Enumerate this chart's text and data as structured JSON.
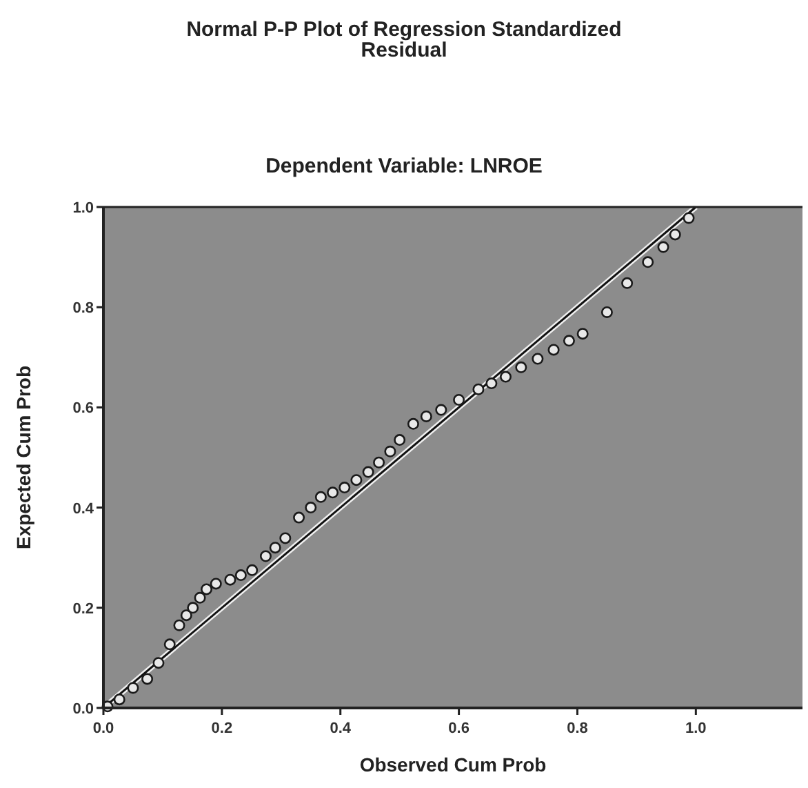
{
  "chart_data": {
    "type": "scatter",
    "title": "Normal P-P Plot of Regression Standardized Residual",
    "subtitle": "Dependent Variable: LNROE",
    "xlabel": "Observed Cum Prob",
    "ylabel": "Expected Cum Prob",
    "xlim": [
      0,
      1.18
    ],
    "ylim": [
      0,
      1
    ],
    "xticks": [
      {
        "value": 0,
        "label": "0.0"
      },
      {
        "value": 0.2,
        "label": "0.2"
      },
      {
        "value": 0.4,
        "label": "0.4"
      },
      {
        "value": 0.6,
        "label": "0.6"
      },
      {
        "value": 0.8,
        "label": "0.8"
      },
      {
        "value": 1,
        "label": "1.0"
      }
    ],
    "yticks": [
      {
        "value": 0,
        "label": "0.0"
      },
      {
        "value": 0.2,
        "label": "0.2"
      },
      {
        "value": 0.4,
        "label": "0.4"
      },
      {
        "value": 0.6,
        "label": "0.6"
      },
      {
        "value": 0.8,
        "label": "0.8"
      },
      {
        "value": 1,
        "label": "1.0"
      }
    ],
    "grid": false,
    "series": [
      {
        "color": "#1a1a1a",
        "marker": "circle",
        "x": [
          0.007,
          0.027,
          0.05,
          0.074,
          0.093,
          0.112,
          0.128,
          0.14,
          0.151,
          0.163,
          0.174,
          0.19,
          0.214,
          0.232,
          0.251,
          0.274,
          0.29,
          0.307,
          0.33,
          0.35,
          0.367,
          0.387,
          0.407,
          0.427,
          0.447,
          0.465,
          0.484,
          0.5,
          0.523,
          0.545,
          0.57,
          0.6,
          0.633,
          0.655,
          0.679,
          0.705,
          0.733,
          0.76,
          0.786,
          0.809,
          0.85,
          0.884,
          0.919,
          0.945,
          0.965,
          0.988
        ],
        "values": [
          0.003,
          0.017,
          0.04,
          0.058,
          0.09,
          0.127,
          0.165,
          0.185,
          0.2,
          0.22,
          0.237,
          0.248,
          0.256,
          0.265,
          0.275,
          0.303,
          0.32,
          0.339,
          0.38,
          0.4,
          0.421,
          0.43,
          0.44,
          0.455,
          0.471,
          0.49,
          0.512,
          0.535,
          0.567,
          0.582,
          0.595,
          0.615,
          0.636,
          0.648,
          0.661,
          0.68,
          0.697,
          0.715,
          0.733,
          0.747,
          0.79,
          0.848,
          0.89,
          0.92,
          0.945,
          0.978
        ]
      },
      {
        "type": "line",
        "color": "#111111",
        "x": [
          0,
          1
        ],
        "values": [
          0,
          1
        ]
      }
    ]
  }
}
